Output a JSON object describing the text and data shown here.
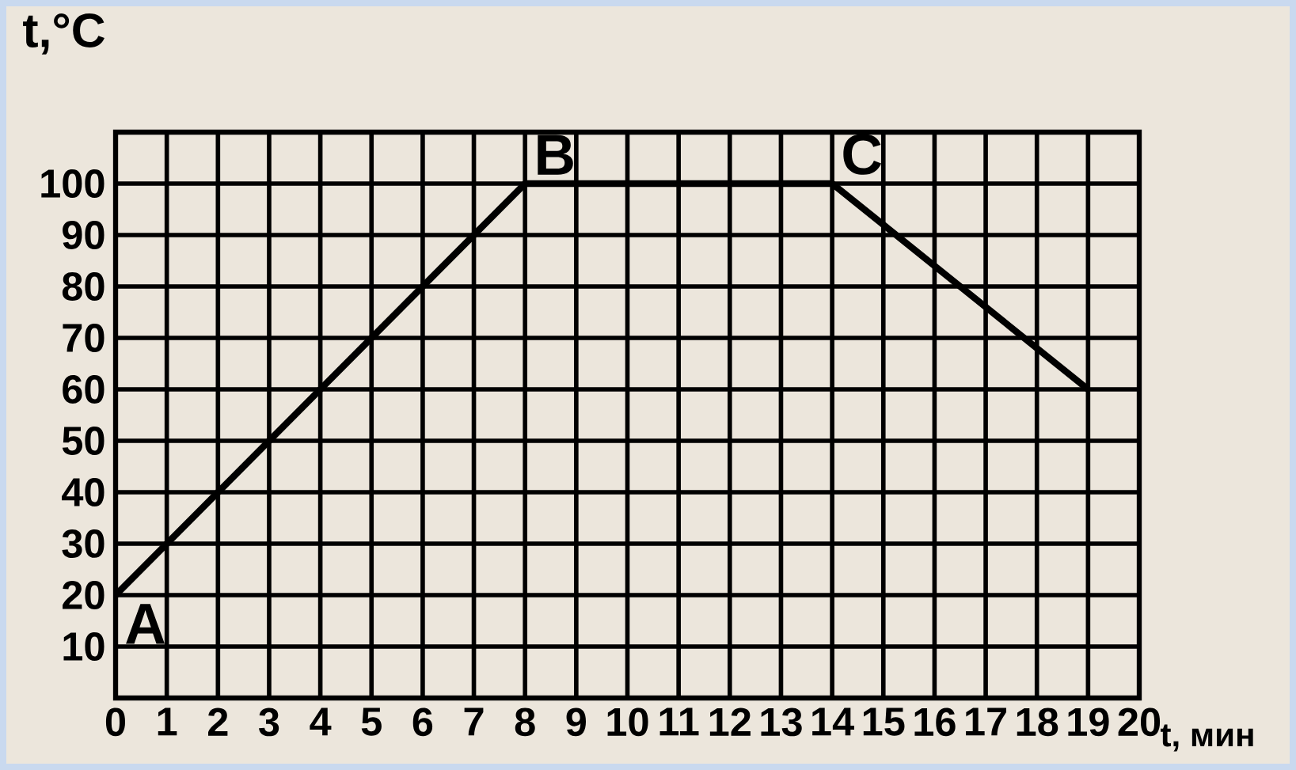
{
  "chart_data": {
    "type": "line",
    "xlabel": "t, мин",
    "ylabel": "t,°C",
    "x": [
      0,
      8,
      14,
      19
    ],
    "series": [
      {
        "color": "#000000",
        "values": [
          20,
          100,
          100,
          60
        ]
      }
    ],
    "xlim": [
      0,
      20
    ],
    "ylim": [
      0,
      110
    ],
    "xticks": [
      0,
      1,
      2,
      3,
      4,
      5,
      6,
      7,
      8,
      9,
      10,
      11,
      12,
      13,
      14,
      15,
      16,
      17,
      18,
      19,
      20
    ],
    "yticks": [
      10,
      20,
      30,
      40,
      50,
      60,
      70,
      80,
      90,
      100
    ],
    "grid": true,
    "marker": "none",
    "line_style": "solid",
    "annotations": [
      {
        "text": "A",
        "x": 0,
        "y": 20
      },
      {
        "text": "B",
        "x": 8,
        "y": 100
      },
      {
        "text": "C",
        "x": 14,
        "y": 100
      }
    ]
  }
}
